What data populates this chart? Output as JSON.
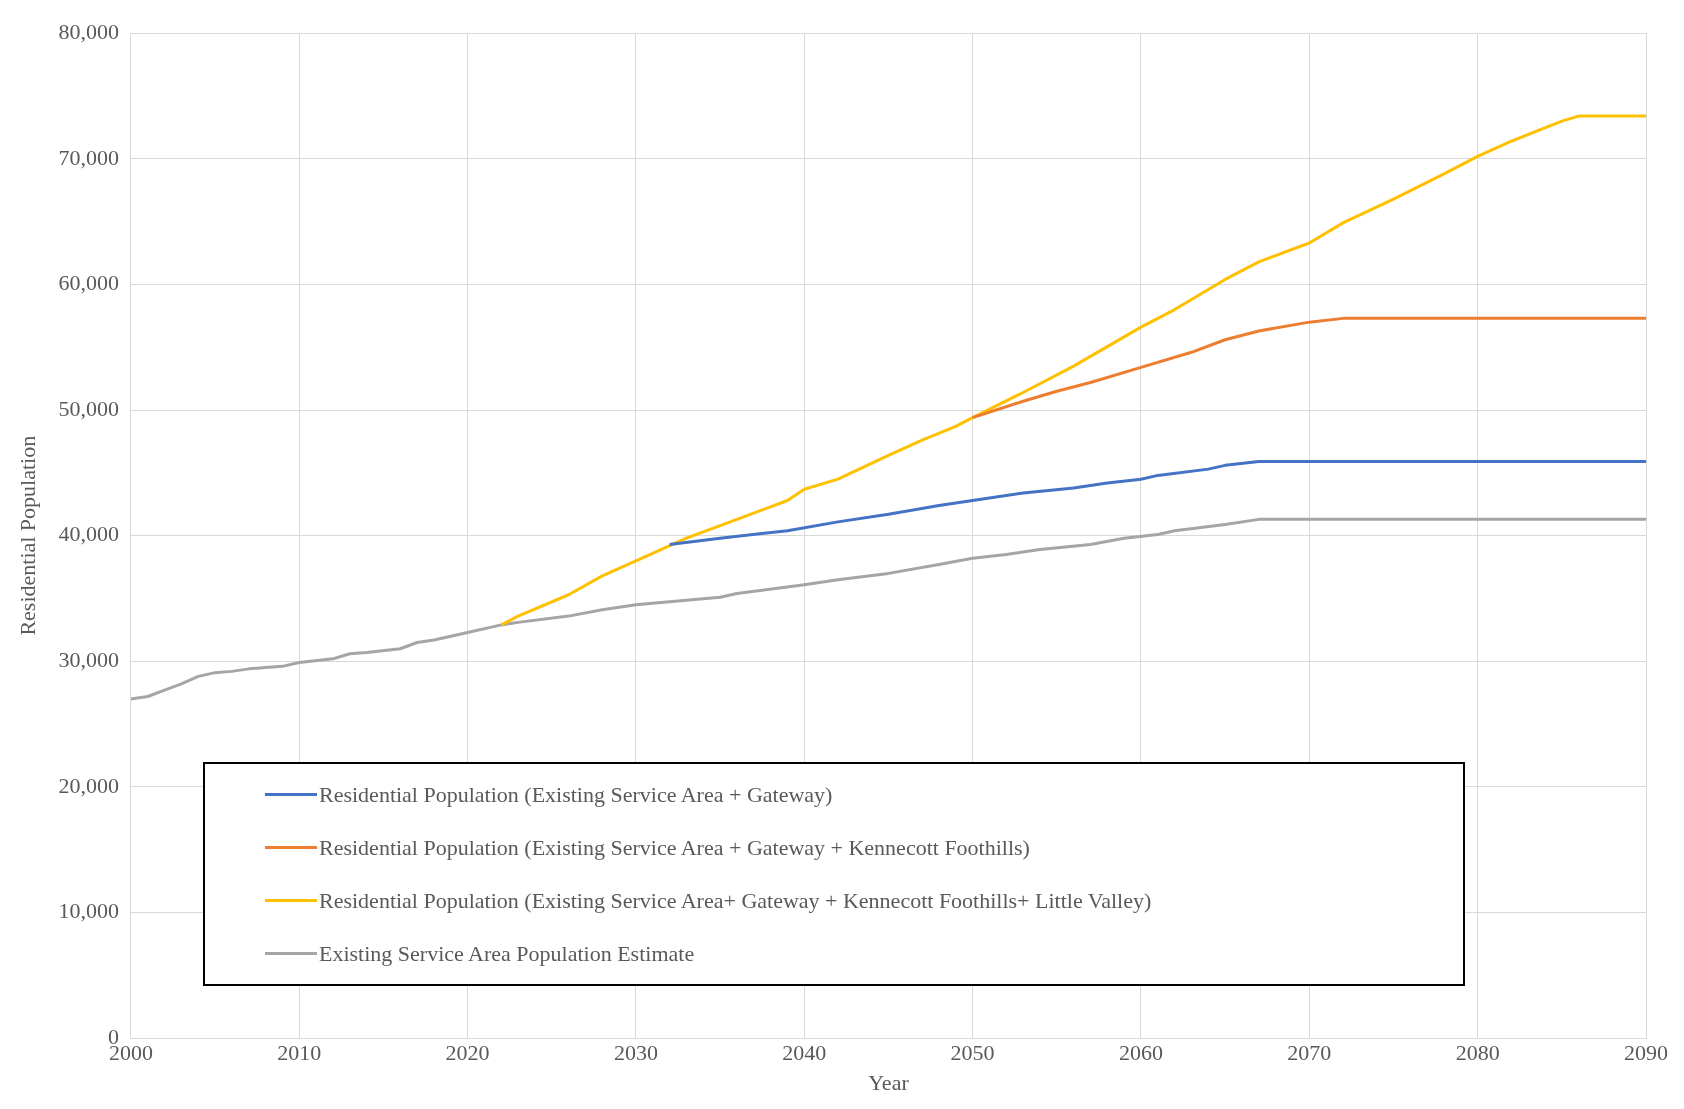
{
  "chart_data": {
    "type": "line",
    "xlabel": "Year",
    "ylabel": "Residential Population",
    "xlim": [
      2000,
      2090
    ],
    "xticks": [
      2000,
      2010,
      2020,
      2030,
      2040,
      2050,
      2060,
      2070,
      2080,
      2090
    ],
    "ylim": [
      0,
      80000
    ],
    "yticks": [
      {
        "value": 0,
        "label": "0"
      },
      {
        "value": 10000,
        "label": "10,000"
      },
      {
        "value": 20000,
        "label": "20,000"
      },
      {
        "value": 30000,
        "label": "30,000"
      },
      {
        "value": 40000,
        "label": "40,000"
      },
      {
        "value": 50000,
        "label": "50,000"
      },
      {
        "value": 60000,
        "label": "60,000"
      },
      {
        "value": 70000,
        "label": "70,000"
      },
      {
        "value": 80000,
        "label": "80,000"
      }
    ],
    "grid": true,
    "legend": "bottom",
    "marker": "none",
    "line_style": "solid",
    "series": [
      {
        "name": "Residential Population (Existing Service Area + Gateway)",
        "color": "#4472c4",
        "x": [
          2032,
          2035,
          2039,
          2042,
          2045,
          2048,
          2050,
          2053,
          2056,
          2058,
          2060,
          2061,
          2064,
          2065,
          2067,
          2090
        ],
        "values": [
          39300,
          39800,
          40400,
          41100,
          41700,
          42400,
          42800,
          43400,
          43800,
          44200,
          44500,
          44800,
          45300,
          45600,
          45900,
          45900
        ]
      },
      {
        "name": "Residential Population (Existing Service Area + Gateway +  Kennecott Foothills)",
        "color": "#ed7d31",
        "x": [
          2050,
          2053,
          2055,
          2057,
          2060,
          2063,
          2065,
          2067,
          2070,
          2072,
          2090
        ],
        "values": [
          49400,
          50700,
          51500,
          52200,
          53400,
          54600,
          55600,
          56300,
          57000,
          57300,
          57300
        ]
      },
      {
        "name": "Residential Population (Existing Service Area+ Gateway + Kennecott Foothills+ Little Valley)",
        "color": "#ffc000",
        "x": [
          2022,
          2023,
          2026,
          2028,
          2030,
          2033,
          2036,
          2039,
          2040,
          2042,
          2045,
          2047,
          2049,
          2050,
          2053,
          2056,
          2060,
          2062,
          2065,
          2067,
          2070,
          2072,
          2075,
          2078,
          2080,
          2082,
          2085,
          2086,
          2090
        ],
        "values": [
          32900,
          33600,
          35300,
          36800,
          38000,
          39800,
          41300,
          42800,
          43700,
          44500,
          46400,
          47600,
          48700,
          49400,
          51400,
          53500,
          56600,
          58000,
          60400,
          61800,
          63300,
          64900,
          66800,
          68800,
          70200,
          71400,
          73000,
          73400,
          73400
        ]
      },
      {
        "name": "Existing Service Area Population Estimate",
        "color": "#a5a5a5",
        "x": [
          2000,
          2001,
          2002,
          2003,
          2004,
          2005,
          2006,
          2007,
          2008,
          2009,
          2010,
          2012,
          2013,
          2014,
          2016,
          2017,
          2018,
          2020,
          2022,
          2023,
          2026,
          2028,
          2030,
          2035,
          2036,
          2040,
          2042,
          2045,
          2048,
          2050,
          2052,
          2054,
          2057,
          2059,
          2061,
          2062,
          2065,
          2067,
          2090
        ],
        "values": [
          27000,
          27200,
          27700,
          28200,
          28800,
          29100,
          29200,
          29400,
          29500,
          29600,
          29900,
          30200,
          30600,
          30700,
          31000,
          31500,
          31700,
          32300,
          32900,
          33100,
          33600,
          34100,
          34500,
          35100,
          35400,
          36100,
          36500,
          37000,
          37700,
          38200,
          38500,
          38900,
          39300,
          39800,
          40100,
          40400,
          40900,
          41300,
          41300
        ]
      }
    ]
  }
}
